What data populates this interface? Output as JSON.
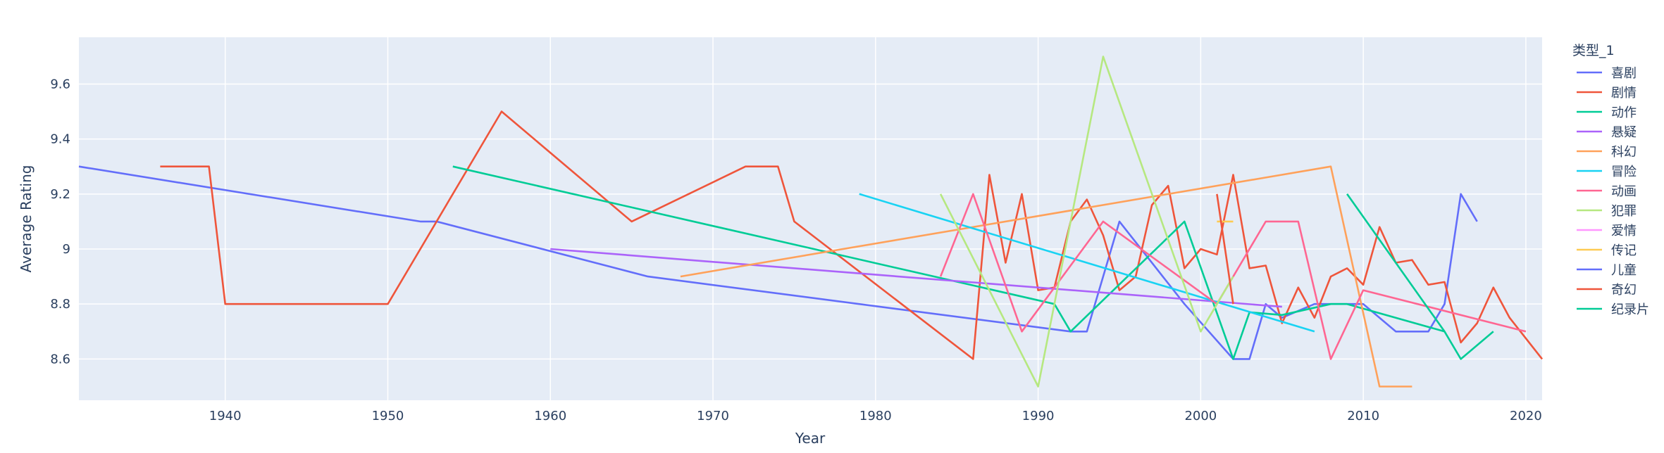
{
  "chart_data": {
    "type": "line",
    "title": "",
    "xlabel": "Year",
    "ylabel": "Average Rating",
    "xlim": [
      1931,
      2021
    ],
    "ylim": [
      8.45,
      9.77
    ],
    "xticks": [
      1940,
      1950,
      1960,
      1970,
      1980,
      1990,
      2000,
      2010,
      2020
    ],
    "xtick_labels": [
      "1940",
      "1950",
      "1960",
      "1970",
      "1980",
      "1990",
      "2000",
      "2010",
      "2020"
    ],
    "yticks": [
      8.6,
      8.8,
      9.0,
      9.2,
      9.4,
      9.6
    ],
    "ytick_labels": [
      "8.6",
      "8.8",
      "9",
      "9.2",
      "9.4",
      "9.6"
    ],
    "grid": true,
    "legend_position": "right",
    "legend_title": "类型_1",
    "series": [
      {
        "name": "喜剧",
        "color": "#636efa",
        "points": [
          [
            1931,
            9.3
          ],
          [
            1952,
            9.1
          ],
          [
            1953,
            9.1
          ],
          [
            1966,
            8.9
          ],
          [
            1992,
            8.7
          ],
          [
            1993,
            8.7
          ],
          [
            1995,
            9.1
          ],
          [
            1999,
            8.8
          ],
          [
            2002,
            8.6
          ],
          [
            2003,
            8.6
          ],
          [
            2004,
            8.8
          ],
          [
            2005,
            8.75
          ],
          [
            2007,
            8.8
          ],
          [
            2010,
            8.8
          ],
          [
            2012,
            8.7
          ],
          [
            2014,
            8.7
          ],
          [
            2015,
            8.8
          ],
          [
            2016,
            9.2
          ],
          [
            2017,
            9.1
          ]
        ]
      },
      {
        "name": "剧情",
        "color": "#ef553b",
        "points": [
          [
            1936,
            9.3
          ],
          [
            1939,
            9.3
          ],
          [
            1940,
            8.8
          ],
          [
            1950,
            8.8
          ],
          [
            1957,
            9.5
          ],
          [
            1965,
            9.1
          ],
          [
            1972,
            9.3
          ],
          [
            1974,
            9.3
          ],
          [
            1975,
            9.1
          ],
          [
            1986,
            8.6
          ],
          [
            1987,
            9.27
          ],
          [
            1988,
            8.95
          ],
          [
            1989,
            9.2
          ],
          [
            1990,
            8.85
          ],
          [
            1991,
            8.86
          ],
          [
            1992,
            9.1
          ],
          [
            1993,
            9.18
          ],
          [
            1994,
            9.05
          ],
          [
            1995,
            8.85
          ],
          [
            1996,
            8.9
          ],
          [
            1997,
            9.16
          ],
          [
            1998,
            9.23
          ],
          [
            1999,
            8.93
          ],
          [
            2000,
            9.0
          ],
          [
            2001,
            8.98
          ],
          [
            2002,
            9.27
          ],
          [
            2003,
            8.93
          ],
          [
            2004,
            8.94
          ],
          [
            2005,
            8.73
          ],
          [
            2006,
            8.86
          ],
          [
            2007,
            8.75
          ],
          [
            2008,
            8.9
          ],
          [
            2009,
            8.93
          ],
          [
            2010,
            8.87
          ],
          [
            2011,
            9.08
          ],
          [
            2012,
            8.95
          ],
          [
            2013,
            8.96
          ],
          [
            2014,
            8.87
          ],
          [
            2015,
            8.88
          ],
          [
            2016,
            8.66
          ],
          [
            2017,
            8.73
          ],
          [
            2018,
            8.86
          ],
          [
            2019,
            8.75
          ],
          [
            2021,
            8.6
          ]
        ]
      },
      {
        "name": "动作",
        "color": "#00cc96",
        "points": [
          [
            1954,
            9.3
          ],
          [
            1991,
            8.8
          ],
          [
            1992,
            8.7
          ],
          [
            1999,
            9.1
          ],
          [
            2002,
            8.6
          ],
          [
            2003,
            8.77
          ],
          [
            2005,
            8.76
          ],
          [
            2008,
            8.8
          ],
          [
            2009,
            8.8
          ],
          [
            2015,
            8.7
          ],
          [
            2016,
            8.6
          ],
          [
            2018,
            8.7
          ]
        ]
      },
      {
        "name": "悬疑",
        "color": "#ab63fa",
        "points": [
          [
            1960,
            9.0
          ],
          [
            2005,
            8.79
          ]
        ]
      },
      {
        "name": "科幻",
        "color": "#ffa15a",
        "points": [
          [
            1968,
            8.9
          ],
          [
            2008,
            9.3
          ],
          [
            2011,
            8.5
          ],
          [
            2013,
            8.5
          ]
        ]
      },
      {
        "name": "冒险",
        "color": "#19d3f3",
        "points": [
          [
            1979,
            9.2
          ],
          [
            2007,
            8.7
          ]
        ]
      },
      {
        "name": "动画",
        "color": "#ff6692",
        "points": [
          [
            1984,
            8.9
          ],
          [
            1986,
            9.2
          ],
          [
            1989,
            8.7
          ],
          [
            1994,
            9.1
          ],
          [
            2001,
            8.8
          ],
          [
            2004,
            9.1
          ],
          [
            2006,
            9.1
          ],
          [
            2008,
            8.6
          ],
          [
            2010,
            8.85
          ],
          [
            2020,
            8.7
          ]
        ]
      },
      {
        "name": "犯罪",
        "color": "#b6e880",
        "points": [
          [
            1984,
            9.2
          ],
          [
            1990,
            8.5
          ],
          [
            1994,
            9.7
          ],
          [
            2000,
            8.7
          ],
          [
            2002,
            8.9
          ]
        ]
      },
      {
        "name": "爱情",
        "color": "#ff97ff",
        "points": []
      },
      {
        "name": "传记",
        "color": "#fecb52",
        "points": [
          [
            2001,
            9.1
          ],
          [
            2002,
            9.1
          ]
        ]
      },
      {
        "name": "儿童",
        "color": "#636efa",
        "points": []
      },
      {
        "name": "奇幻",
        "color": "#ef553b",
        "points": [
          [
            2001,
            9.2
          ],
          [
            2002,
            8.8
          ]
        ]
      },
      {
        "name": "纪录片",
        "color": "#00cc96",
        "points": [
          [
            2009,
            9.2
          ],
          [
            2015,
            8.7
          ]
        ]
      }
    ]
  }
}
